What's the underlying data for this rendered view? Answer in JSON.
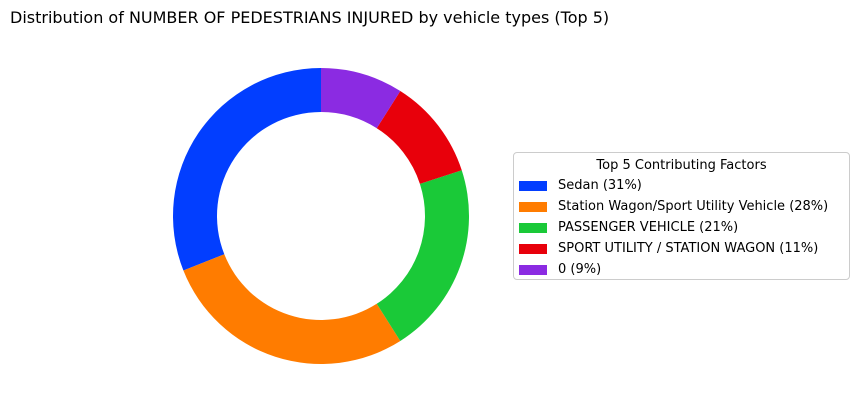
{
  "chart_data": {
    "type": "pie",
    "variant": "donut",
    "title": "Distribution of NUMBER OF PEDESTRIANS INJURED by vehicle types (Top 5)",
    "legend_title": "Top 5 Contributing Factors",
    "legend_position": "right",
    "slices": [
      {
        "label": "Sedan (31%)",
        "value": 31,
        "color": "#023eff"
      },
      {
        "label": "Station Wagon/Sport Utility Vehicle (28%)",
        "value": 28,
        "color": "#ff7c00"
      },
      {
        "label": "PASSENGER VEHICLE (21%)",
        "value": 21,
        "color": "#1ac938"
      },
      {
        "label": "SPORT UTILITY / STATION WAGON (11%)",
        "value": 11,
        "color": "#e8000b"
      },
      {
        "label": "0 (9%)",
        "value": 9,
        "color": "#8b2be2"
      }
    ]
  }
}
